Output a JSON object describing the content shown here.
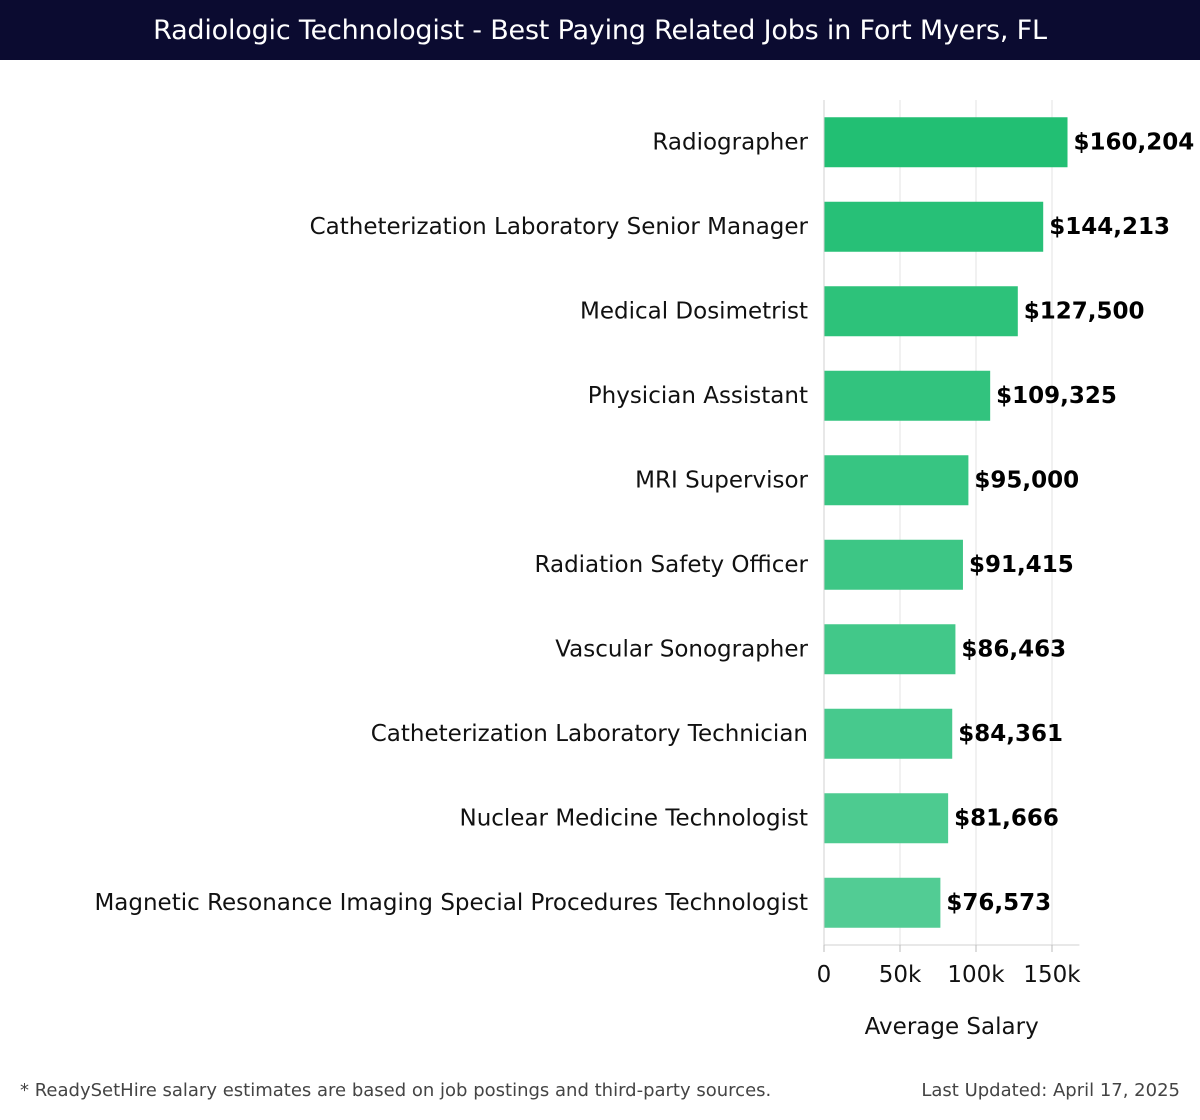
{
  "header": {
    "title": "Radiologic Technologist - Best Paying Related Jobs in Fort Myers, FL"
  },
  "footer": {
    "note": "* ReadySetHire salary estimates are based on job postings and third-party sources.",
    "updated": "Last Updated: April 17, 2025"
  },
  "chart_data": {
    "type": "bar",
    "orientation": "horizontal",
    "title": "Radiologic Technologist - Best Paying Related Jobs in Fort Myers, FL",
    "xlabel": "Average Salary",
    "ylabel": "",
    "xlim": [
      0,
      168000
    ],
    "x_ticks": [
      0,
      50000,
      100000,
      150000
    ],
    "x_tick_labels": [
      "0",
      "50k",
      "100k",
      "150k"
    ],
    "grid": true,
    "bar_color_top": "#22bf73",
    "bar_color_bottom": "#52cc94",
    "categories": [
      "Radiographer",
      "Catheterization Laboratory Senior Manager",
      "Medical Dosimetrist",
      "Physician Assistant",
      "MRI Supervisor",
      "Radiation Safety Officer",
      "Vascular Sonographer",
      "Catheterization Laboratory Technician",
      "Nuclear Medicine Technologist",
      "Magnetic Resonance Imaging Special Procedures Technologist"
    ],
    "values": [
      160204,
      144213,
      127500,
      109325,
      95000,
      91415,
      86463,
      84361,
      81666,
      76573
    ],
    "value_labels": [
      "$160,204",
      "$144,213",
      "$127,500",
      "$109,325",
      "$95,000",
      "$91,415",
      "$86,463",
      "$84,361",
      "$81,666",
      "$76,573"
    ]
  }
}
